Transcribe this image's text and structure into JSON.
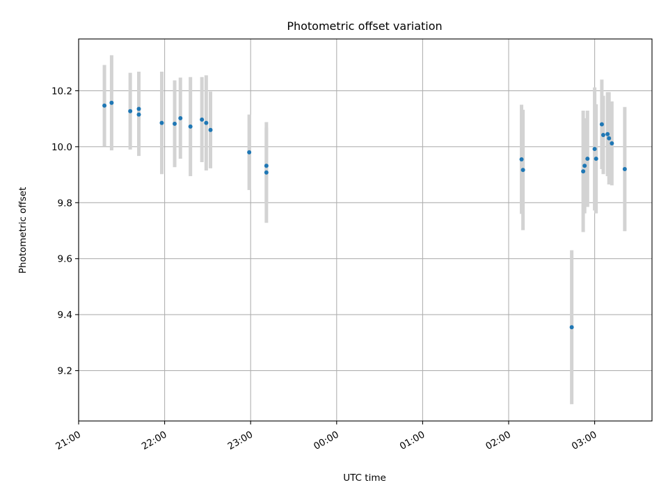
{
  "chart_data": {
    "type": "scatter",
    "title": "Photometric offset variation",
    "xlabel": "UTC time",
    "ylabel": "Photometric offset",
    "x_time_range": [
      "21:00",
      "03:40"
    ],
    "ylim": [
      9.02,
      10.385
    ],
    "x_ticks": [
      "21:00",
      "22:00",
      "23:00",
      "00:00",
      "01:00",
      "02:00",
      "03:00"
    ],
    "y_ticks": [
      9.2,
      9.4,
      9.6,
      9.8,
      10.0,
      10.2
    ],
    "y_tick_labels": [
      "9.2",
      "9.4",
      "9.6",
      "9.8",
      "10.0",
      "10.2"
    ],
    "grid": true,
    "colors": {
      "point": "#1f77b4",
      "error_bar": "#d3d3d3",
      "grid": "#b0b0b0"
    },
    "points": [
      {
        "time": "21:18",
        "y": 10.147,
        "err": 0.145
      },
      {
        "time": "21:23",
        "y": 10.157,
        "err": 0.17
      },
      {
        "time": "21:36",
        "y": 10.127,
        "err": 0.137
      },
      {
        "time": "21:42",
        "y": 10.135,
        "err": 0.133
      },
      {
        "time": "21:42",
        "y": 10.115,
        "err": 0.148
      },
      {
        "time": "21:58",
        "y": 10.085,
        "err": 0.183
      },
      {
        "time": "22:07",
        "y": 10.082,
        "err": 0.155
      },
      {
        "time": "22:11",
        "y": 10.102,
        "err": 0.145
      },
      {
        "time": "22:18",
        "y": 10.072,
        "err": 0.177
      },
      {
        "time": "22:26",
        "y": 10.097,
        "err": 0.152
      },
      {
        "time": "22:29",
        "y": 10.085,
        "err": 0.17
      },
      {
        "time": "22:32",
        "y": 10.06,
        "err": 0.137
      },
      {
        "time": "22:59",
        "y": 9.98,
        "err": 0.135
      },
      {
        "time": "23:11",
        "y": 9.932,
        "err": 0.135
      },
      {
        "time": "23:11",
        "y": 9.908,
        "err": 0.18
      },
      {
        "time": "02:09",
        "y": 9.955,
        "err": 0.195
      },
      {
        "time": "02:10",
        "y": 9.917,
        "err": 0.215
      },
      {
        "time": "02:44",
        "y": 9.355,
        "err": 0.275
      },
      {
        "time": "02:52",
        "y": 9.912,
        "err": 0.217
      },
      {
        "time": "02:53",
        "y": 9.932,
        "err": 0.17
      },
      {
        "time": "02:55",
        "y": 9.957,
        "err": 0.172
      },
      {
        "time": "03:00",
        "y": 9.992,
        "err": 0.22
      },
      {
        "time": "03:01",
        "y": 9.957,
        "err": 0.195
      },
      {
        "time": "03:05",
        "y": 10.08,
        "err": 0.16
      },
      {
        "time": "03:06",
        "y": 10.042,
        "err": 0.14
      },
      {
        "time": "03:09",
        "y": 10.045,
        "err": 0.15
      },
      {
        "time": "03:10",
        "y": 10.03,
        "err": 0.165
      },
      {
        "time": "03:12",
        "y": 10.012,
        "err": 0.15
      },
      {
        "time": "03:21",
        "y": 9.92,
        "err": 0.222
      }
    ]
  }
}
